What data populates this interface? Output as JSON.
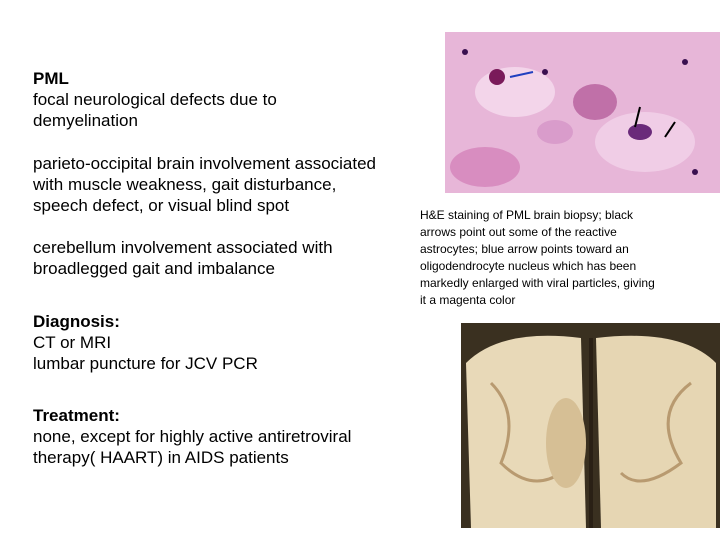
{
  "blocks": [
    {
      "heading": "PML",
      "lines": [
        "focal neurological defects due to",
        "demyelination"
      ]
    },
    {
      "lines": [
        "parieto-occipital brain involvement associated",
        "with muscle weakness, gait disturbance,",
        "speech defect, or visual blind spot"
      ]
    },
    {
      "lines": [
        "cerebellum involvement associated with",
        "broadlegged gait and imbalance"
      ]
    },
    {
      "heading": "Diagnosis:",
      "lines": [
        "CT or MRI",
        "lumbar puncture for JCV PCR"
      ]
    },
    {
      "heading": "Treatment:",
      "lines": [
        "none, except for highly active antiretroviral",
        "therapy( HAART) in AIDS patients"
      ]
    }
  ],
  "caption": {
    "lines": [
      "H&E staining of PML brain biopsy; black",
      "arrows point out some of the reactive",
      "astrocytes; blue arrow points toward an",
      "oligodendrocyte nucleus which has been",
      "markedly enlarged with viral particles, giving",
      "it a magenta color"
    ]
  }
}
